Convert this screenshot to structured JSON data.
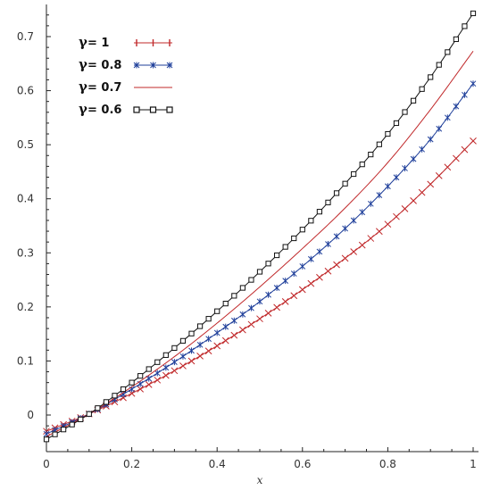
{
  "chart_data": {
    "type": "line",
    "title": "",
    "xlabel": "x",
    "ylabel": "",
    "xlim": [
      0,
      1
    ],
    "ylim": [
      -0.05,
      0.75
    ],
    "xticks": [
      "0",
      "0.2",
      "0.4",
      "0.6",
      "0.8",
      "1"
    ],
    "xtick_values": [
      0,
      0.2,
      0.4,
      0.6,
      0.8,
      1
    ],
    "yticks": [
      "0",
      "0.1",
      "0.2",
      "0.3",
      "0.4",
      "0.5",
      "0.6",
      "0.7"
    ],
    "ytick_values": [
      0,
      0.1,
      0.2,
      0.3,
      0.4,
      0.5,
      0.6,
      0.7
    ],
    "grid": false,
    "legend_position": "top-left",
    "x": [
      0,
      0.1,
      0.2,
      0.3,
      0.4,
      0.5,
      0.6,
      0.7,
      0.8,
      0.9,
      1.0
    ],
    "series": [
      {
        "name": "γ= 1",
        "label_symbol": "γ",
        "label_value": "= 1",
        "color": "#c0282a",
        "marker": "cross",
        "values": [
          -0.03,
          0.002,
          0.04,
          0.082,
          0.128,
          0.178,
          0.232,
          0.29,
          0.353,
          0.427,
          0.507
        ]
      },
      {
        "name": "γ= 0.8",
        "label_symbol": "γ",
        "label_value": "= 0.8",
        "color": "#1f3f9a",
        "marker": "star",
        "values": [
          -0.035,
          0.002,
          0.048,
          0.098,
          0.152,
          0.21,
          0.275,
          0.345,
          0.423,
          0.51,
          0.613
        ]
      },
      {
        "name": "γ= 0.7",
        "label_symbol": "γ",
        "label_value": "= 0.7",
        "color": "#c0282a",
        "marker": "none",
        "values": [
          -0.04,
          0.002,
          0.052,
          0.108,
          0.17,
          0.237,
          0.308,
          0.383,
          0.467,
          0.565,
          0.673
        ]
      },
      {
        "name": "γ= 0.6",
        "label_symbol": "γ",
        "label_value": "= 0.6",
        "color": "#111111",
        "marker": "square",
        "values": [
          -0.045,
          0.002,
          0.06,
          0.124,
          0.192,
          0.265,
          0.343,
          0.428,
          0.52,
          0.625,
          0.743
        ]
      }
    ]
  }
}
